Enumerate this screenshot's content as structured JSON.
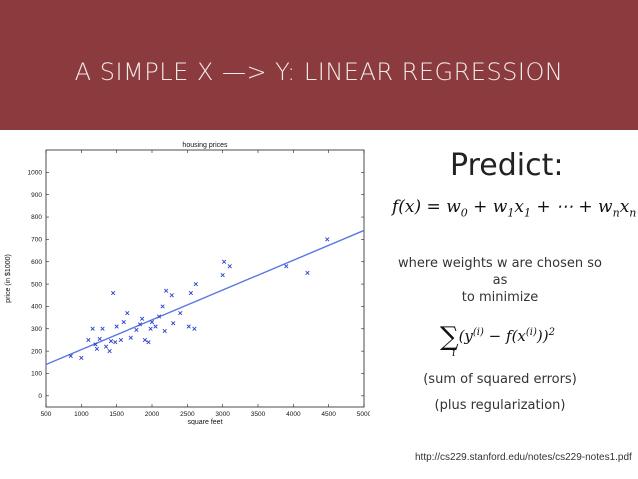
{
  "header": {
    "title": "A SIMPLE X —> Y: LINEAR REGRESSION",
    "background": "#8b3a3e"
  },
  "chart_data": {
    "type": "scatter",
    "title": "housing prices",
    "xlabel": "square feet",
    "ylabel": "price (in $1000)",
    "xlim": [
      500,
      5000
    ],
    "ylim": [
      -50,
      1100
    ],
    "xticks": [
      500,
      1000,
      1500,
      2000,
      2500,
      3000,
      3500,
      4000,
      4500,
      5000
    ],
    "yticks": [
      0,
      100,
      200,
      300,
      400,
      500,
      600,
      700,
      800,
      900,
      1000
    ],
    "marker_color": "#2a3fd0",
    "line_color": "#5a78e0",
    "points": [
      [
        850,
        178
      ],
      [
        1000,
        170
      ],
      [
        1100,
        250
      ],
      [
        1160,
        300
      ],
      [
        1200,
        230
      ],
      [
        1220,
        210
      ],
      [
        1260,
        255
      ],
      [
        1300,
        300
      ],
      [
        1350,
        220
      ],
      [
        1400,
        200
      ],
      [
        1420,
        245
      ],
      [
        1450,
        460
      ],
      [
        1480,
        240
      ],
      [
        1500,
        310
      ],
      [
        1560,
        250
      ],
      [
        1600,
        330
      ],
      [
        1650,
        370
      ],
      [
        1700,
        260
      ],
      [
        1780,
        295
      ],
      [
        1830,
        320
      ],
      [
        1860,
        345
      ],
      [
        1900,
        250
      ],
      [
        1950,
        240
      ],
      [
        1980,
        300
      ],
      [
        2000,
        330
      ],
      [
        2050,
        310
      ],
      [
        2100,
        355
      ],
      [
        2150,
        400
      ],
      [
        2180,
        290
      ],
      [
        2200,
        470
      ],
      [
        2280,
        450
      ],
      [
        2300,
        325
      ],
      [
        2400,
        370
      ],
      [
        2520,
        310
      ],
      [
        2550,
        460
      ],
      [
        2600,
        300
      ],
      [
        2620,
        500
      ],
      [
        3000,
        540
      ],
      [
        3020,
        600
      ],
      [
        3100,
        580
      ],
      [
        3900,
        580
      ],
      [
        4200,
        550
      ],
      [
        4480,
        700
      ]
    ],
    "fit_line": {
      "x": [
        500,
        5000
      ],
      "y": [
        140,
        740
      ]
    }
  },
  "predict": {
    "title": "Predict:",
    "formula": {
      "lhs": "f(x) = w",
      "s0": "0",
      "p1": " + w",
      "s1": "1",
      "x1": "x",
      "s1b": "1",
      "dots": " + ⋯ + w",
      "sn": "n",
      "xn": "x",
      "snb": "n"
    },
    "description": [
      "where weights w are chosen so",
      "as",
      "to minimize"
    ],
    "loss": {
      "sum": "∑",
      "sub": "i",
      "body1": "(y",
      "sup1": "(i)",
      "body2": " − f(x",
      "sup2": "(i)",
      "body3": "))",
      "sq": "2"
    },
    "note1": "(sum of squared errors)",
    "note2": "(plus regularization)"
  },
  "url": "http://cs229.stanford.edu/notes/cs229-notes1.pdf"
}
